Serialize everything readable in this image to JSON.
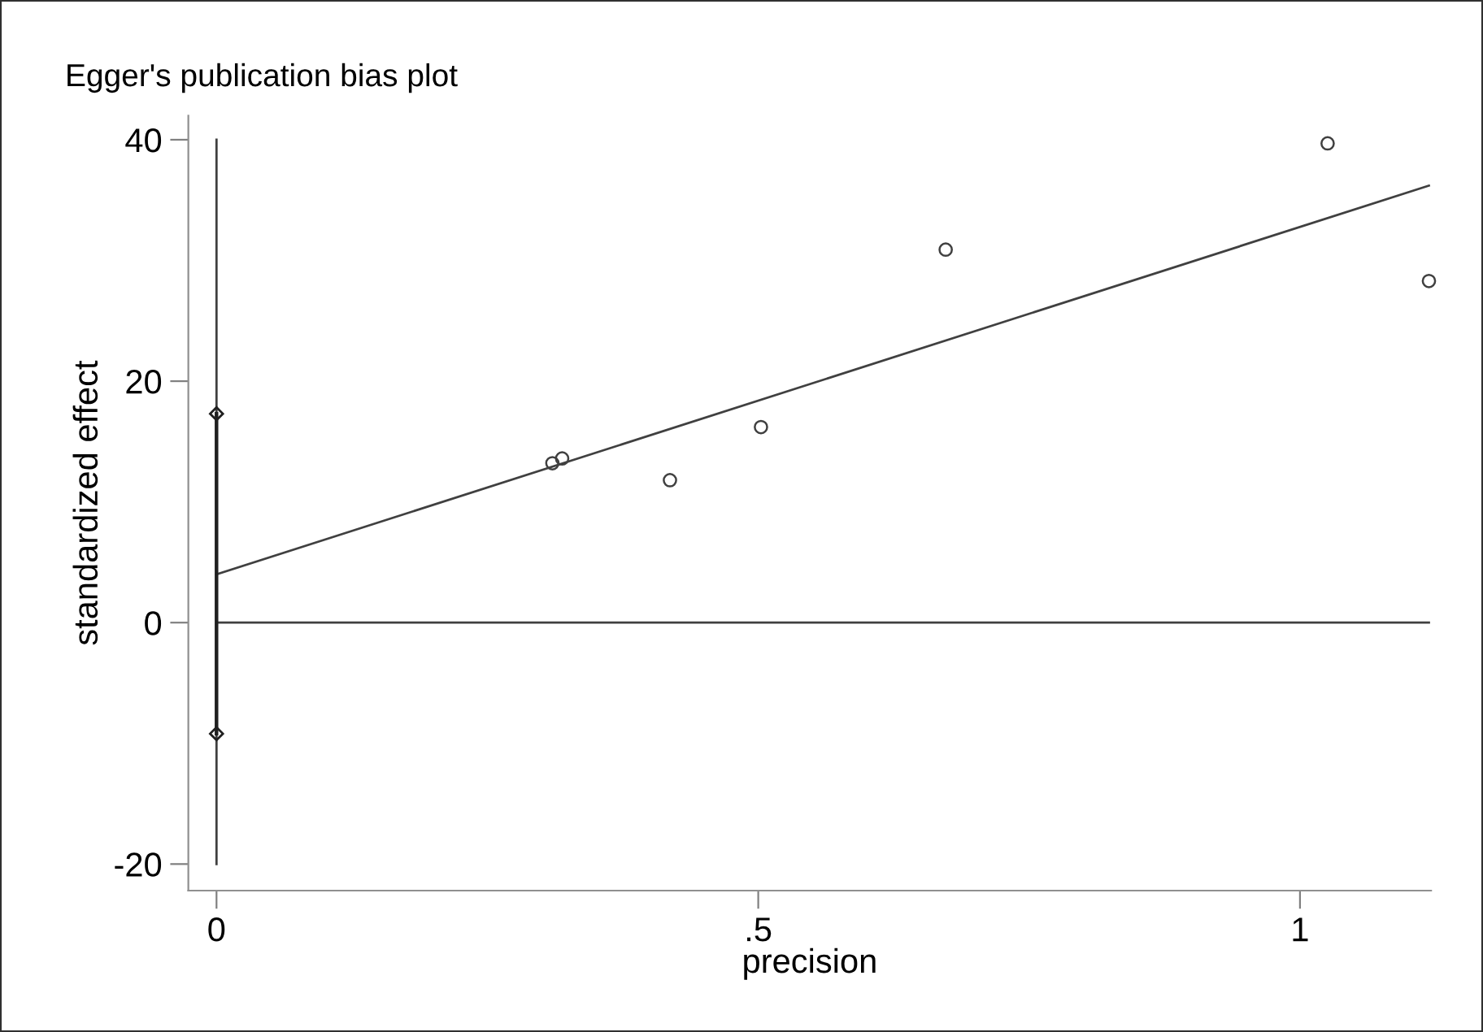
{
  "chart_data": {
    "type": "scatter",
    "title": "Egger's publication bias plot",
    "xlabel": "precision",
    "ylabel": "standardized effect",
    "series": [
      {
        "marker": "circle",
        "color": "#404040",
        "x": [
          0.31,
          0.319,
          0.4185,
          0.5025,
          0.673,
          1.0255,
          1.119
        ],
        "values": [
          13.2,
          13.6,
          11.8,
          16.2,
          30.9,
          39.7,
          28.3
        ]
      },
      {
        "type": "line",
        "marker": "none",
        "color": "#404040",
        "x": [
          0,
          1.119
        ],
        "values": [
          4.0,
          36.2
        ]
      },
      {
        "type": "line",
        "marker": "none",
        "color": "#404040",
        "x": [
          0,
          1.119
        ],
        "values": [
          0,
          0
        ]
      },
      {
        "type": "line",
        "marker": "none",
        "color": "#404040",
        "x": [
          0,
          0
        ],
        "values": [
          -20,
          40
        ]
      },
      {
        "type": "line",
        "marker": "diamond",
        "color": "#202020",
        "x": [
          0,
          0
        ],
        "values": [
          -9.2,
          17.3
        ]
      }
    ],
    "xlim": [
      -0.026,
      1.121
    ],
    "ylim": [
      -22.2,
      42
    ],
    "xticks": [
      0,
      {
        "value": 0.5,
        "label": ".5"
      },
      1
    ],
    "yticks": [
      -20,
      0,
      20,
      40
    ],
    "grid": false,
    "legend": false
  }
}
